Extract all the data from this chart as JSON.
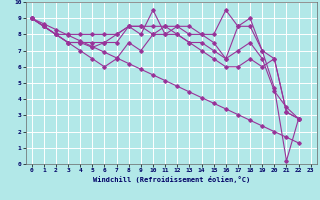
{
  "bg_color": "#b2e8e8",
  "grid_color": "#ffffff",
  "line_color": "#993399",
  "xlim": [
    -0.5,
    23.5
  ],
  "ylim": [
    0,
    10
  ],
  "xticks": [
    0,
    1,
    2,
    3,
    4,
    5,
    6,
    7,
    8,
    9,
    10,
    11,
    12,
    13,
    14,
    15,
    16,
    17,
    18,
    19,
    20,
    21,
    22,
    23
  ],
  "yticks": [
    0,
    1,
    2,
    3,
    4,
    5,
    6,
    7,
    8,
    9,
    10
  ],
  "xlabel": "Windchill (Refroidissement éolien,°C)",
  "line1": [
    9.0,
    8.5,
    8.0,
    8.0,
    8.0,
    8.0,
    8.0,
    8.0,
    8.5,
    8.5,
    8.5,
    8.5,
    8.5,
    8.5,
    8.0,
    8.0,
    9.5,
    8.5,
    9.0,
    7.0,
    6.5,
    3.2,
    2.8
  ],
  "line2": [
    9.0,
    8.5,
    8.0,
    7.5,
    7.5,
    7.5,
    7.5,
    8.0,
    8.5,
    8.0,
    9.5,
    8.0,
    8.5,
    8.0,
    8.0,
    7.5,
    6.5,
    8.5,
    8.5,
    7.0,
    4.7,
    0.2,
    2.8
  ],
  "line3": [
    9.0,
    8.5,
    8.0,
    7.5,
    7.0,
    6.5,
    6.0,
    6.5,
    7.5,
    7.0,
    8.0,
    8.5,
    8.0,
    7.5,
    7.0,
    6.5,
    6.0,
    6.0,
    6.5,
    6.0,
    6.5,
    3.2,
    2.8
  ],
  "line4": [
    9.0,
    8.5,
    8.0,
    7.5,
    7.5,
    7.2,
    7.5,
    7.5,
    8.5,
    8.5,
    8.0,
    8.0,
    8.0,
    7.5,
    7.5,
    7.0,
    6.5,
    7.0,
    7.5,
    6.5,
    4.5,
    3.5,
    2.8
  ],
  "diag": [
    9.0,
    8.65,
    8.3,
    7.95,
    7.6,
    7.25,
    6.9,
    6.55,
    6.2,
    5.85,
    5.5,
    5.15,
    4.8,
    4.45,
    4.1,
    3.75,
    3.4,
    3.05,
    2.7,
    2.35,
    2.0,
    1.65,
    1.3
  ]
}
